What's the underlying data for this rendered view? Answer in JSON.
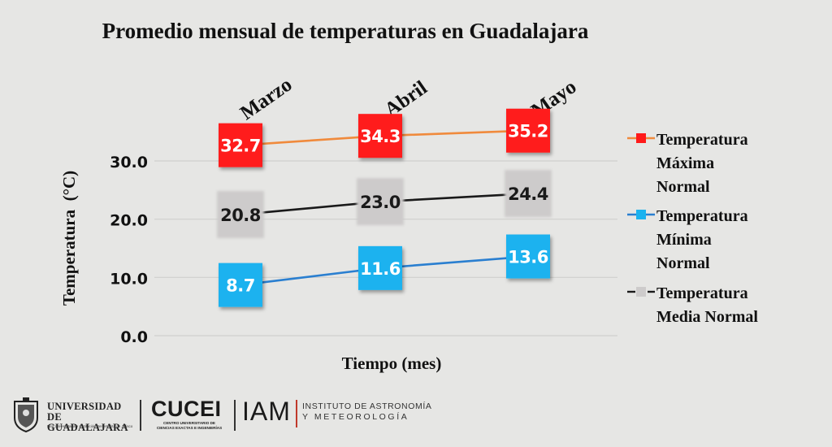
{
  "chart_data": {
    "type": "line",
    "title": "Promedio mensual de temperaturas en Guadalajara",
    "xlabel": "Tiempo (mes)",
    "ylabel": "Temperatura  (°C)",
    "categories": [
      "Marzo",
      "Abril",
      "Mayo"
    ],
    "ylim": [
      0,
      40
    ],
    "yticks": [
      "0.0",
      "10.0",
      "20.0",
      "30.0"
    ],
    "grid": true,
    "legend_position": "right",
    "series": [
      {
        "name": "Temperatura Máxima Normal",
        "legend_lines": [
          "Temperatura",
          "Máxima",
          "Normal"
        ],
        "values": [
          32.7,
          34.3,
          35.2
        ],
        "labels": [
          "32.7",
          "34.3",
          "35.2"
        ],
        "color": "#f08a3c",
        "marker_color": "#ff1a1a",
        "label_color": "#ffffff"
      },
      {
        "name": "Temperatura Media Normal",
        "legend_lines": [
          "Temperatura",
          "Media Normal"
        ],
        "values": [
          20.8,
          23.0,
          24.4
        ],
        "labels": [
          "20.8",
          "23.0",
          "24.4"
        ],
        "color": "#1a1a1a",
        "marker_color": "#cdcbcb",
        "label_color": "#1a1a1a",
        "dashed_legend": true
      },
      {
        "name": "Temperatura Mínima Normal",
        "legend_lines": [
          "Temperatura",
          "Mínima",
          "Normal"
        ],
        "values": [
          8.7,
          11.6,
          13.6
        ],
        "labels": [
          "8.7",
          "11.6",
          "13.6"
        ],
        "color": "#2a7fd0",
        "marker_color": "#1ab2ef",
        "label_color": "#ffffff"
      }
    ],
    "legend_order": [
      0,
      2,
      1
    ]
  },
  "footer": {
    "udg_name_1": "UNIVERSIDAD DE",
    "udg_name_2": "GUADALAJARA",
    "udg_sub": "Red Universitaria e Institución Benemérita de Jalisco",
    "cucei": "CUCEI",
    "cucei_sub": "CENTRO UNIVERSITARIO DE CIENCIAS EXACTAS E INGENIERÍAS",
    "iam": "IAM",
    "iam_name_1": "INSTITUTO DE ASTRONOMÍA",
    "iam_name_2": "Y METEOROLOGÍA"
  }
}
